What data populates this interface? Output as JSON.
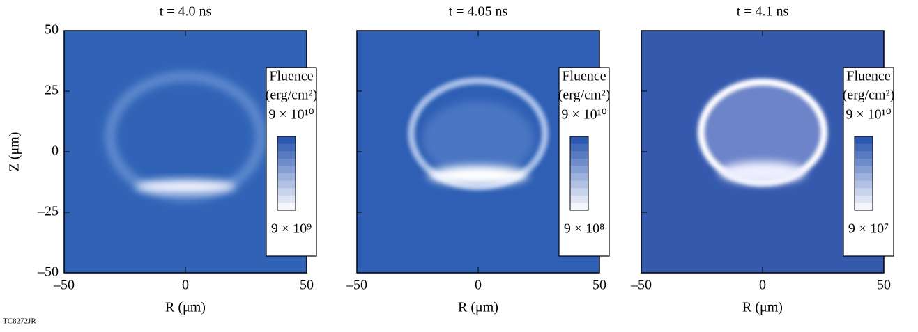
{
  "chart_data": [
    {
      "type": "image",
      "title": "t = 4.0 ns",
      "xlabel": "R (μm)",
      "ylabel": "Z (μm)",
      "xlim": [
        -50,
        50
      ],
      "ylim": [
        -50,
        50
      ],
      "xticks": [
        {
          "value": -50,
          "label": "–50"
        },
        0,
        50
      ],
      "yticks": [
        {
          "value": -50,
          "label": "–50"
        },
        {
          "value": -25,
          "label": "–25"
        },
        0,
        25,
        50
      ],
      "colorbar": {
        "title": "Fluence",
        "unit": "(erg/cm²)",
        "clim": [
          {
            "value": 9000000000,
            "label": "9 × 10⁹"
          },
          {
            "value": 90000000000,
            "label": "9 × 10¹⁰"
          }
        ]
      }
    },
    {
      "type": "image",
      "title": "t = 4.05 ns",
      "xlabel": "R (μm)",
      "xlim": [
        -50,
        50
      ],
      "ylim": [
        -50,
        50
      ],
      "xticks": [
        {
          "value": -50,
          "label": "–50"
        },
        0,
        50
      ],
      "yticks": [
        -50,
        -25,
        0,
        25,
        50
      ],
      "colorbar": {
        "title": "Fluence",
        "unit": "(erg/cm²)",
        "clim": [
          {
            "value": 900000000,
            "label": "9 × 10⁸"
          },
          {
            "value": 90000000000,
            "label": "9 × 10¹⁰"
          }
        ]
      }
    },
    {
      "type": "image",
      "title": "t = 4.1 ns",
      "xlabel": "R (μm)",
      "xlim": [
        -50,
        50
      ],
      "ylim": [
        -50,
        50
      ],
      "xticks": [
        {
          "value": -50,
          "label": "–50"
        },
        0,
        50
      ],
      "yticks": [
        -50,
        -25,
        0,
        25,
        50
      ],
      "colorbar": {
        "title": "Fluence",
        "unit": "(erg/cm²)",
        "clim": [
          {
            "value": 90000000,
            "label": "9 × 10⁷"
          },
          {
            "value": 90000000000,
            "label": "9 × 10¹⁰"
          }
        ]
      }
    }
  ],
  "figure_id": "TC8272JR"
}
